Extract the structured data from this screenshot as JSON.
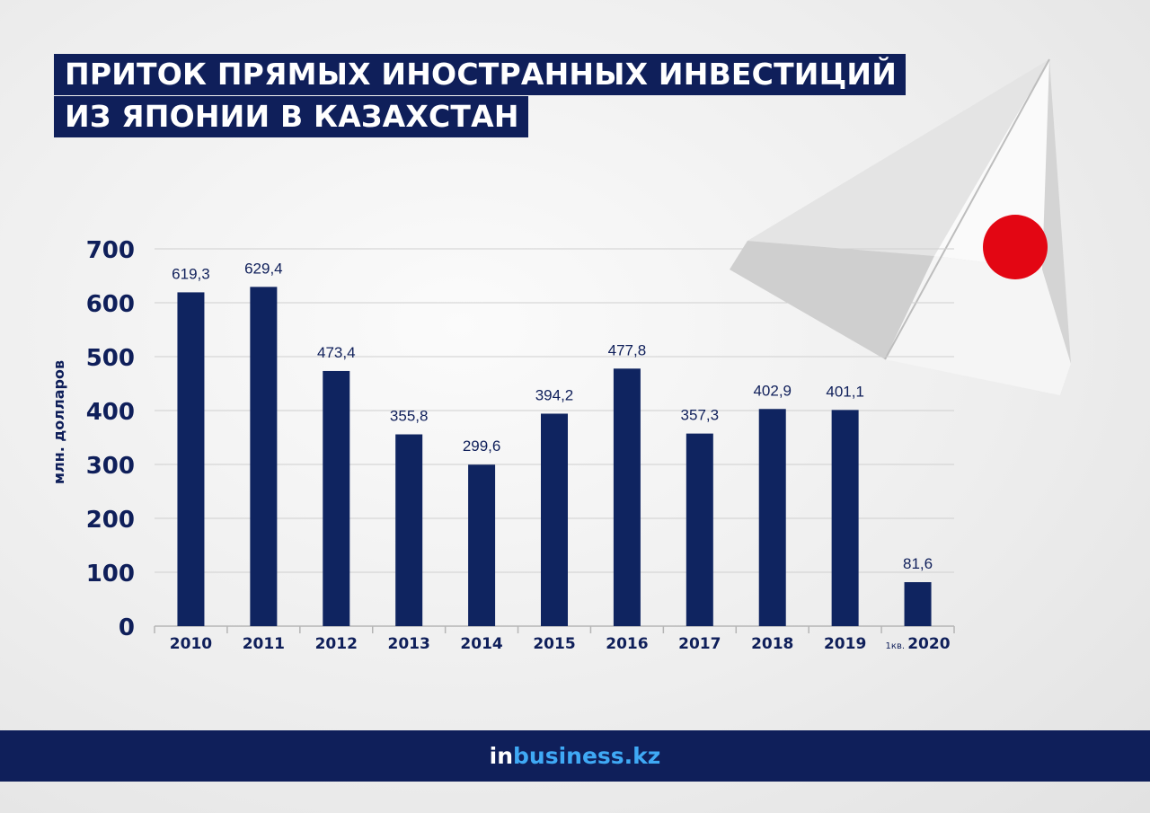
{
  "title": {
    "line1": "ПРИТОК ПРЯМЫХ ИНОСТРАННЫХ ИНВЕСТИЦИЙ",
    "line2": "ИЗ ЯПОНИИ В КАЗАХСТАН"
  },
  "footer": {
    "brand_in": "in",
    "brand_rest": "business.kz"
  },
  "colors": {
    "bar": "#0f2460",
    "title_bg": "#0f1f5a",
    "footer_bg": "#0f1f5a",
    "brand_accent": "#3fa9f5",
    "flag_red": "#e30613"
  },
  "chart_data": {
    "type": "bar",
    "categories": [
      "2010",
      "2011",
      "2012",
      "2013",
      "2014",
      "2015",
      "2016",
      "2017",
      "2018",
      "2019",
      "2020"
    ],
    "category_prefixes": [
      "",
      "",
      "",
      "",
      "",
      "",
      "",
      "",
      "",
      "",
      "1кв."
    ],
    "values": [
      619.3,
      629.4,
      473.4,
      355.8,
      299.6,
      394.2,
      477.8,
      357.3,
      402.9,
      401.1,
      81.6
    ],
    "value_labels": [
      "619,3",
      "629,4",
      "473,4",
      "355,8",
      "299,6",
      "394,2",
      "477,8",
      "357,3",
      "402,9",
      "401,1",
      "81,6"
    ],
    "ylabel": "млн. долларов",
    "ylim": [
      0,
      700
    ],
    "yticks": [
      0,
      100,
      200,
      300,
      400,
      500,
      600,
      700
    ],
    "grid": true
  }
}
